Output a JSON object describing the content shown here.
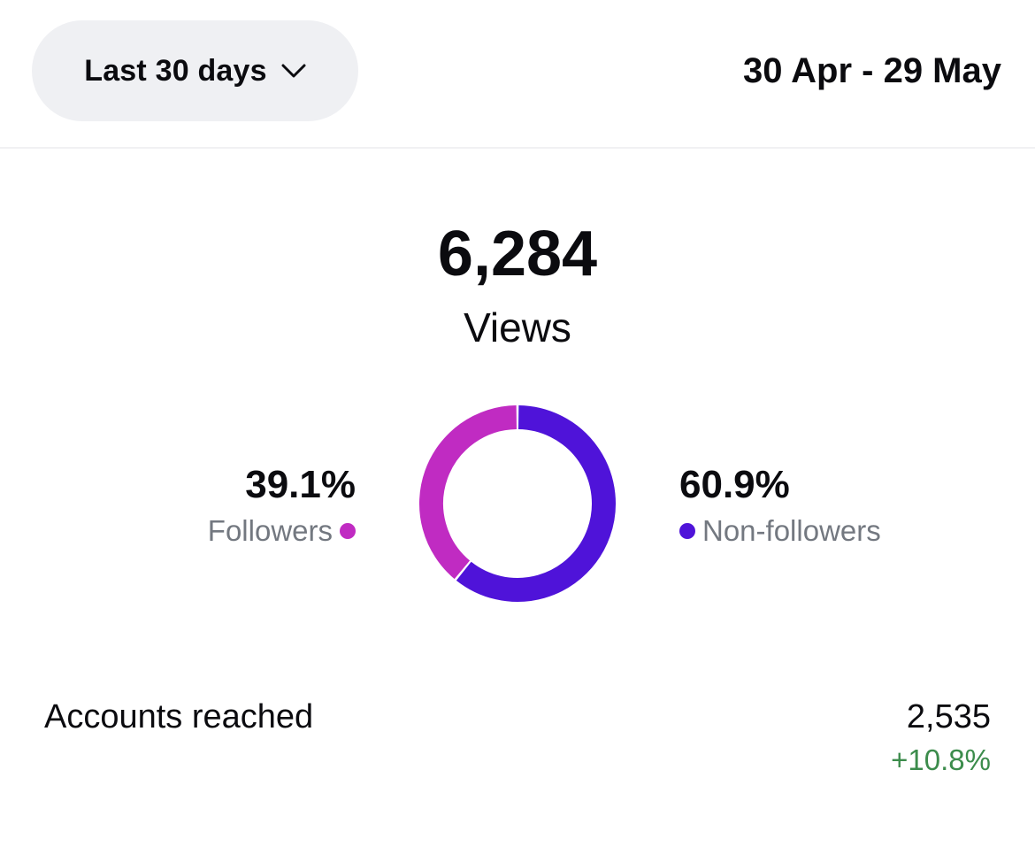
{
  "header": {
    "range_selector": "Last 30 days",
    "date_range": "30 Apr - 29 May",
    "dropdown_icon": "chevron-down-icon"
  },
  "views": {
    "total": "6,284",
    "label": "Views"
  },
  "chart_data": {
    "type": "pie",
    "style": "donut",
    "series": [
      {
        "name": "Followers",
        "value": 39.1,
        "label": "39.1%",
        "color": "#c02bc2"
      },
      {
        "name": "Non-followers",
        "value": 60.9,
        "label": "60.9%",
        "color": "#4f13d9"
      }
    ]
  },
  "accounts_reached": {
    "label": "Accounts reached",
    "value": "2,535",
    "change": "+10.8%",
    "change_color": "#3c8c4c"
  }
}
